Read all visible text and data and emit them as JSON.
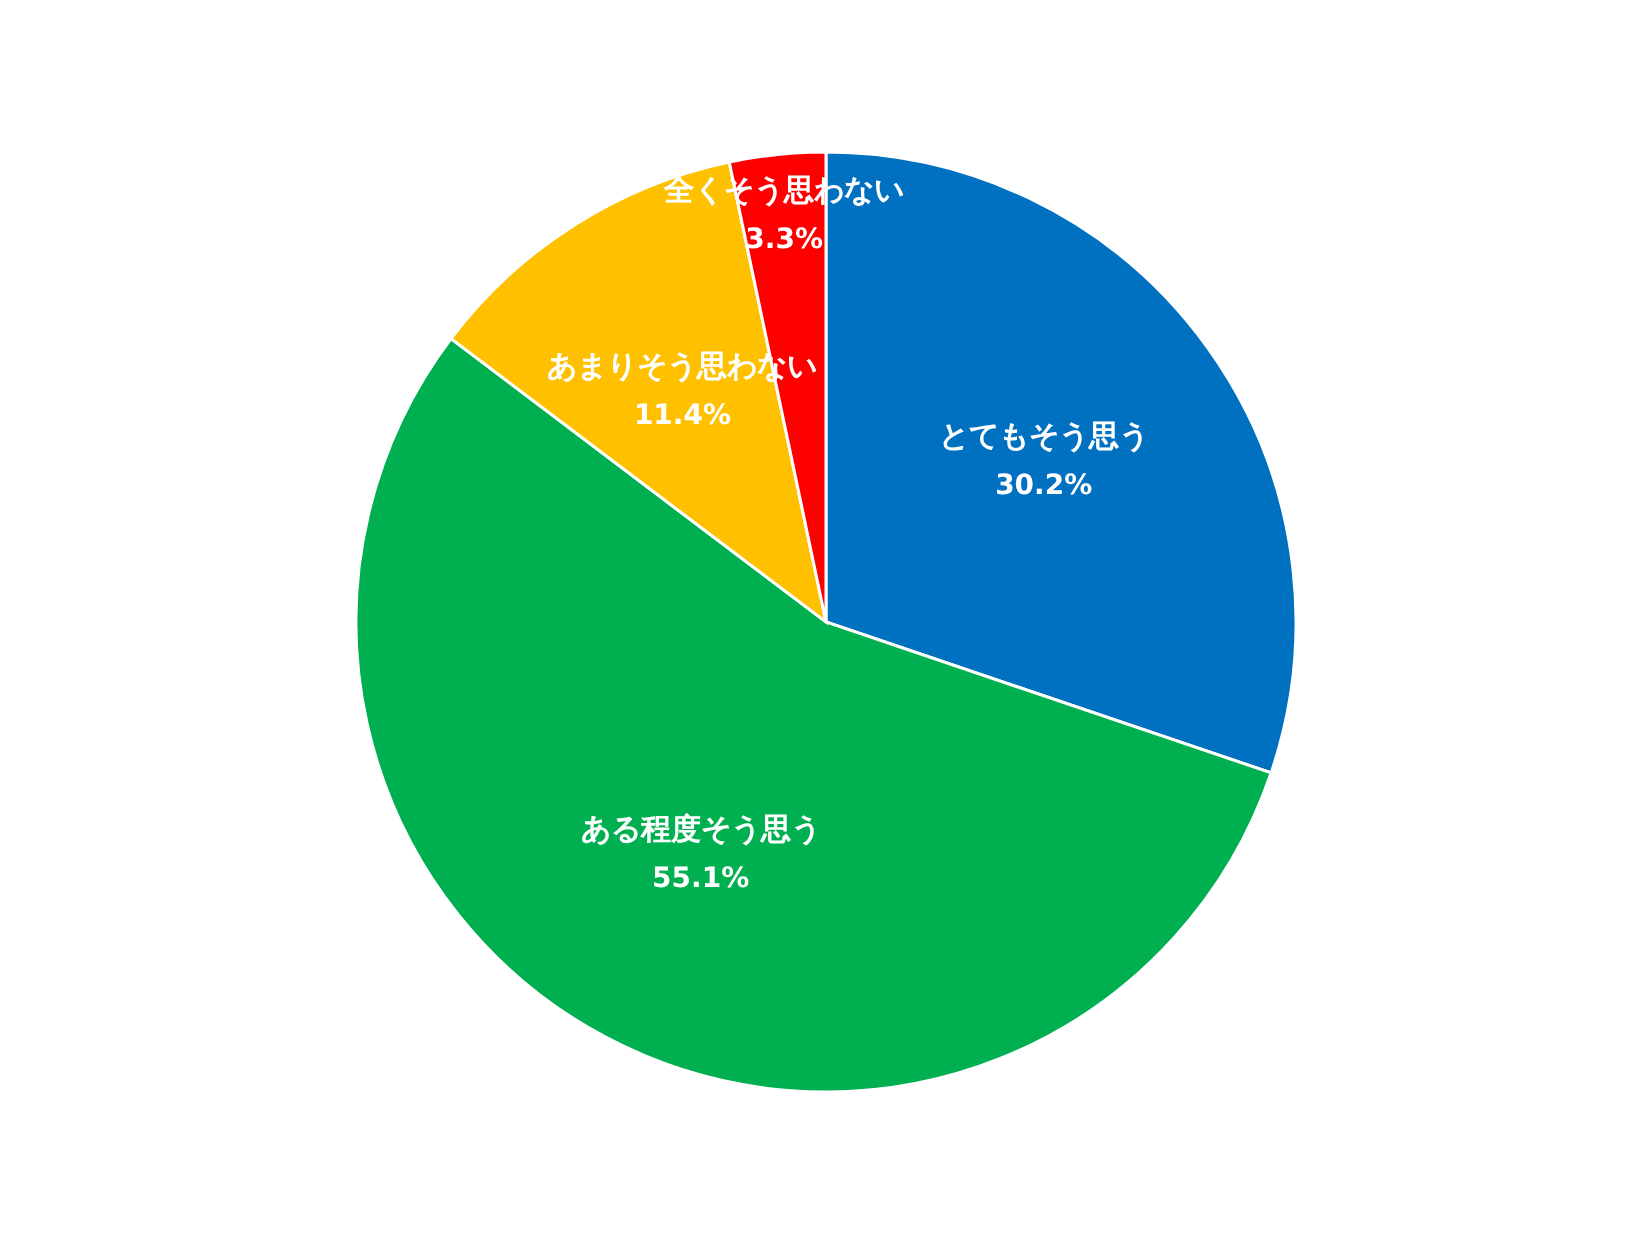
{
  "chart_data": {
    "type": "pie",
    "categories": [
      "とてもそう思う",
      "ある程度そう思う",
      "あまりそう思わない",
      "全くそう思わない"
    ],
    "values": [
      30.2,
      55.1,
      11.4,
      3.3
    ],
    "colors": [
      "#0070c0",
      "#00b050",
      "#ffc000",
      "#ff0000"
    ],
    "value_labels": [
      "30.2%",
      "55.1%",
      "11.4%",
      "3.3%"
    ],
    "legend": false
  }
}
